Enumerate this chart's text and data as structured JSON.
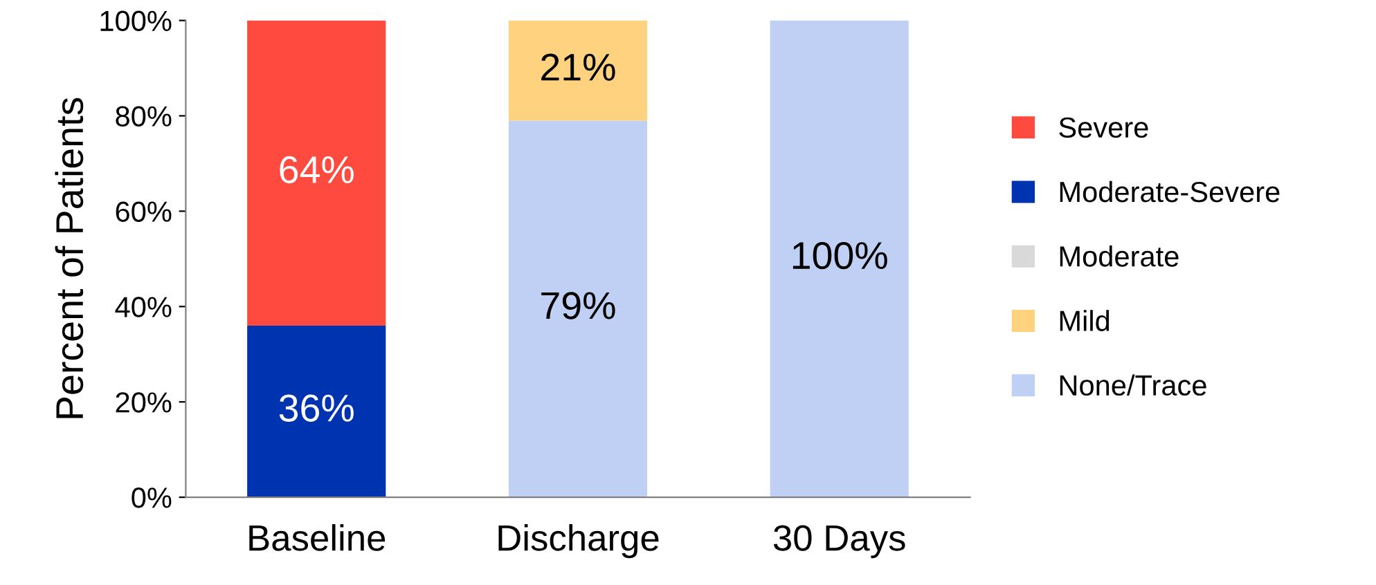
{
  "chart_data": {
    "type": "bar",
    "stacked": true,
    "ylabel": "Percent of Patients",
    "categories": [
      "Baseline",
      "Discharge",
      "30 Days"
    ],
    "series": [
      {
        "name": "None/Trace",
        "color": "#c0d0f5",
        "values": [
          0,
          79,
          100
        ],
        "value_labels": [
          null,
          "79%",
          "100%"
        ]
      },
      {
        "name": "Mild",
        "color": "#ffd27f",
        "values": [
          0,
          21,
          0
        ],
        "value_labels": [
          null,
          "21%",
          null
        ]
      },
      {
        "name": "Moderate",
        "color": "#d9d9d9",
        "values": [
          0,
          0,
          0
        ],
        "value_labels": [
          null,
          null,
          null
        ]
      },
      {
        "name": "Moderate-Severe",
        "color": "#0033b0",
        "values": [
          36,
          0,
          0
        ],
        "value_labels": [
          "36%",
          null,
          null
        ]
      },
      {
        "name": "Severe",
        "color": "#fe4a3f",
        "values": [
          64,
          0,
          0
        ],
        "value_labels": [
          "64%",
          null,
          null
        ]
      }
    ],
    "ylim": [
      0,
      100
    ],
    "yticks": [
      {
        "value": 0,
        "label": "0%"
      },
      {
        "value": 20,
        "label": "20%"
      },
      {
        "value": 40,
        "label": "40%"
      },
      {
        "value": 60,
        "label": "60%"
      },
      {
        "value": 80,
        "label": "80%"
      },
      {
        "value": 100,
        "label": "100%"
      }
    ],
    "grid": false,
    "legend": "right"
  }
}
